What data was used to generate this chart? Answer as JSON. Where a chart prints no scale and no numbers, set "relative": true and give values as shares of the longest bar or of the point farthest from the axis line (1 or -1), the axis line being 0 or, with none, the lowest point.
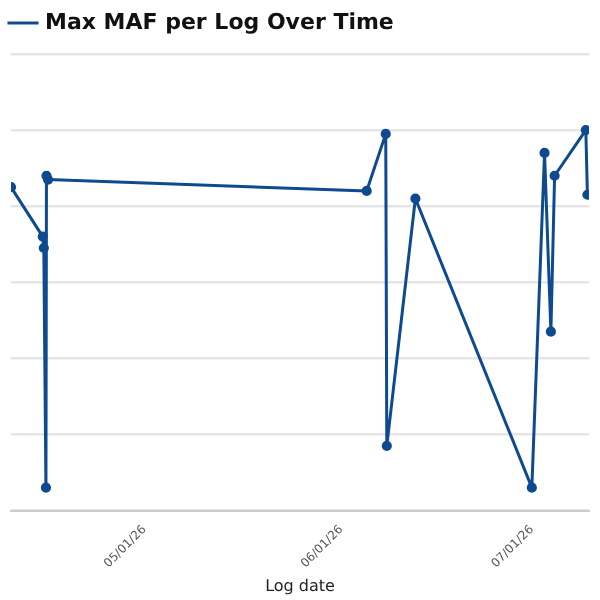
{
  "chart_data": {
    "type": "line",
    "xlabel": "Log date",
    "relative": true,
    "grid": "y",
    "legend": "top left",
    "marker": "circle",
    "line_style": "solid",
    "x": [
      "2026-04-10",
      "2026-04-15T00:00",
      "2026-04-15T04:00",
      "2026-04-15T12:00",
      "2026-04-15T14:00",
      "2026-04-15T20:00",
      "2026-06-05",
      "2026-06-08T00:00",
      "2026-06-08T04:00",
      "2026-06-12T16:00",
      "2026-07-01",
      "2026-07-03",
      "2026-07-04",
      "2026-07-04T14:00",
      "2026-07-09T12:00",
      "2026-07-09T18:00"
    ],
    "xlim": [
      "2026-04-10",
      "2026-07-10"
    ],
    "xticks": [
      {
        "value": "2026-05-01",
        "label": "05/01/26"
      },
      {
        "value": "2026-06-01",
        "label": "06/01/26"
      },
      {
        "value": "2026-07-01",
        "label": "07/01/26"
      }
    ],
    "series": [
      {
        "name": "Max MAF per Log Over Time",
        "color": "#0d4a8f",
        "values": [
          0.85,
          0.72,
          0.69,
          0.06,
          0.88,
          0.87,
          0.84,
          0.99,
          0.17,
          0.82,
          0.06,
          0.94,
          0.47,
          0.88,
          1,
          0.83
        ]
      }
    ]
  }
}
